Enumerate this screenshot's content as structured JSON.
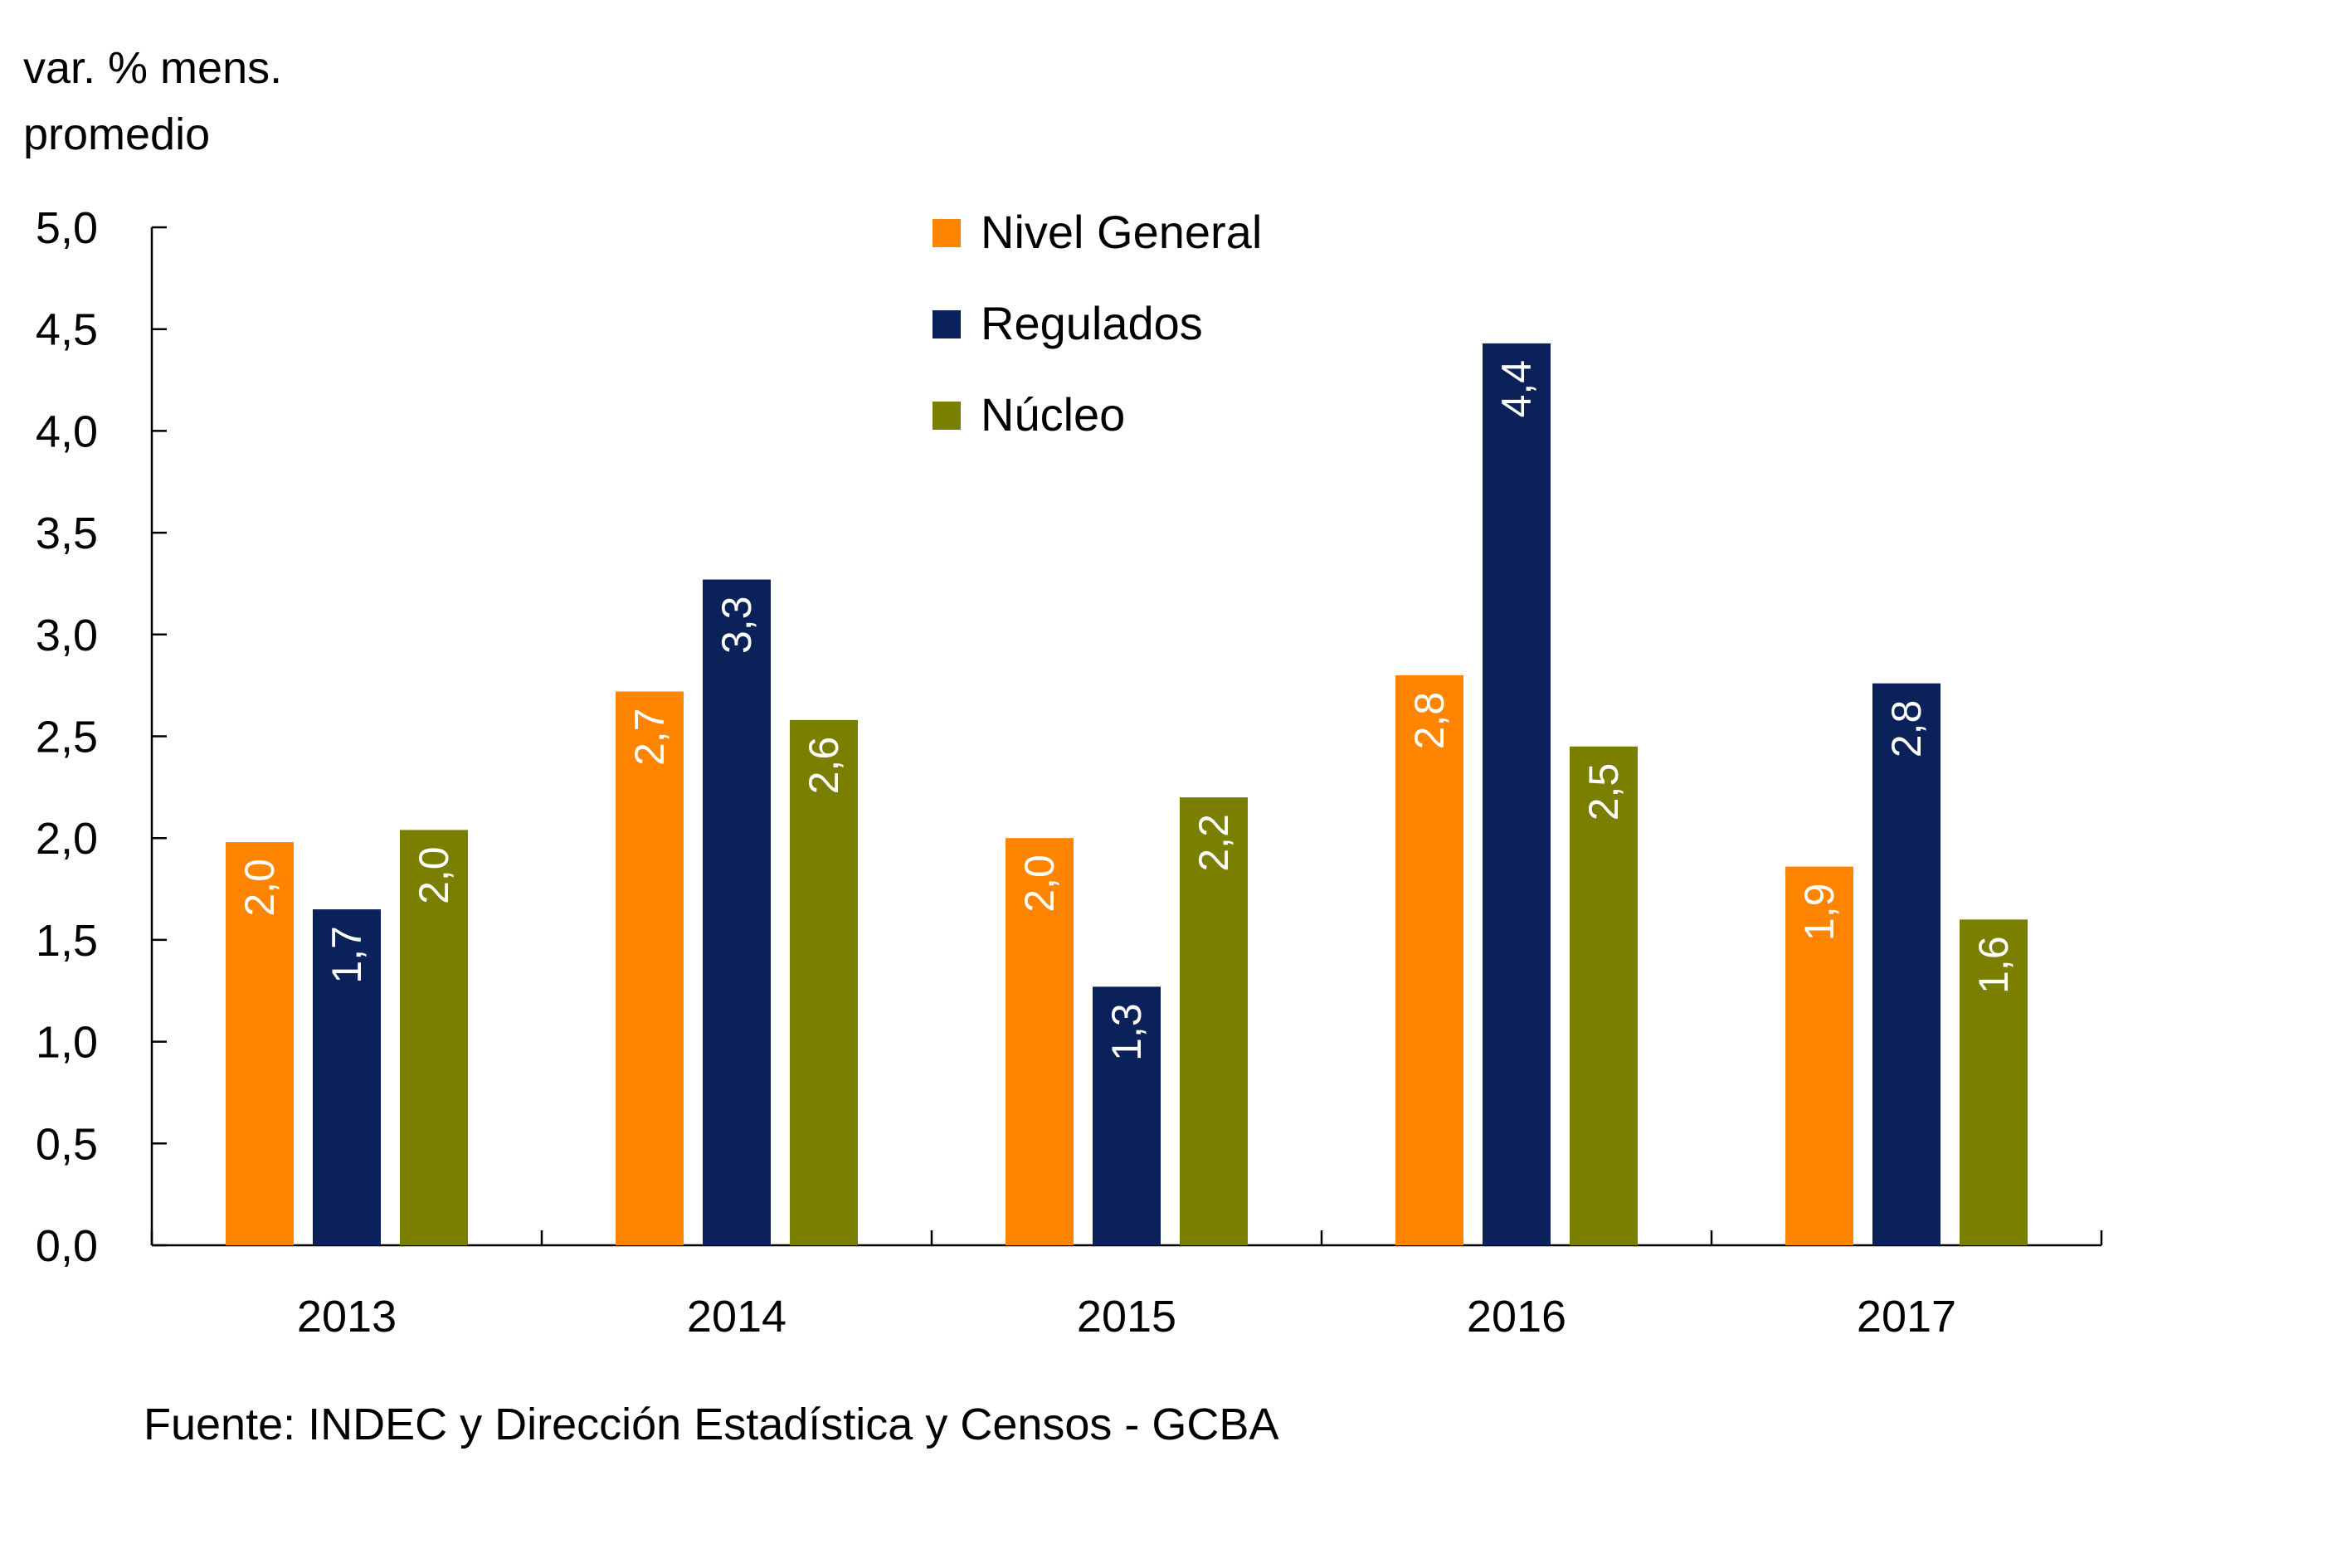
{
  "chart_data": {
    "type": "bar",
    "title": "",
    "ylabel": [
      "var. % mens.",
      "promedio"
    ],
    "xlabel": "",
    "ylim": [
      0,
      5
    ],
    "yticks": [
      0,
      0.5,
      1,
      1.5,
      2,
      2.5,
      3,
      3.5,
      4,
      4.5,
      5
    ],
    "ytick_labels": [
      "0,0",
      "0,5",
      "1,0",
      "1,5",
      "2,0",
      "2,5",
      "3,0",
      "3,5",
      "4,0",
      "4,5",
      "5,0"
    ],
    "categories": [
      "2013",
      "2014",
      "2015",
      "2016",
      "2017"
    ],
    "series": [
      {
        "name": "Nivel General",
        "color": "#FF8400",
        "values": [
          1.98,
          2.72,
          2.0,
          2.8,
          1.86
        ],
        "labels": [
          "2,0",
          "2,7",
          "2,0",
          "2,8",
          "1,9"
        ]
      },
      {
        "name": "Regulados",
        "color": "#0A215A",
        "values": [
          1.65,
          3.27,
          1.27,
          4.43,
          2.76
        ],
        "labels": [
          "1,7",
          "3,3",
          "1,3",
          "4,4",
          "2,8"
        ]
      },
      {
        "name": "Núcleo",
        "color": "#7A7F00",
        "values": [
          2.04,
          2.58,
          2.2,
          2.45,
          1.6
        ],
        "labels": [
          "2,0",
          "2,6",
          "2,2",
          "2,5",
          "1,6"
        ]
      }
    ],
    "legend": {
      "placement": "top-center",
      "entries": [
        "Nivel General",
        "Regulados",
        "Núcleo"
      ]
    },
    "grid": false,
    "data_label_orientation": "vertical",
    "source": "Fuente: INDEC y Dirección Estadística y Censos - GCBA"
  }
}
